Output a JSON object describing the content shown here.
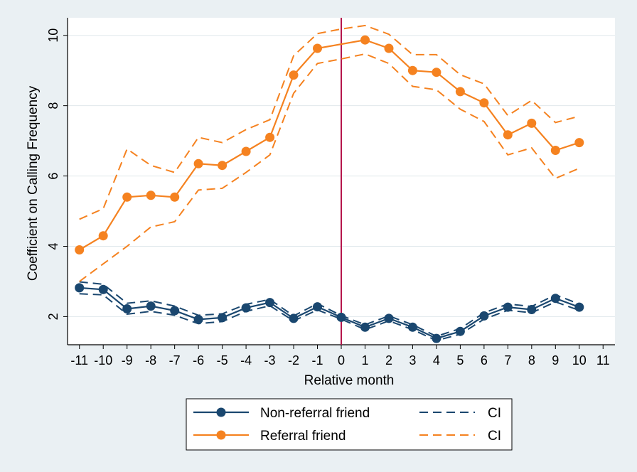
{
  "chart_data": {
    "type": "line",
    "title": "",
    "xlabel": "Relative month",
    "ylabel": "Coefficient on Calling  Frequency",
    "x_ticks": [
      -11,
      -10,
      -9,
      -8,
      -7,
      -6,
      -5,
      -4,
      -3,
      -2,
      -1,
      0,
      1,
      2,
      3,
      4,
      5,
      6,
      7,
      8,
      9,
      10,
      11
    ],
    "y_ticks": [
      2,
      4,
      6,
      8,
      10
    ],
    "xlim": [
      -11.5,
      11.5
    ],
    "ylim": [
      1.2,
      10.5
    ],
    "grid": "horizontal",
    "reference_line_x": 0,
    "legend_position": "bottom",
    "colors": {
      "background": "#eaf0f3",
      "plot_background": "#ffffff",
      "non_referral": "#1a476f",
      "referral": "#f58220",
      "reference_line": "#b5154b",
      "grid": "#e0e8ec"
    },
    "series": [
      {
        "key": "nonref",
        "name": "Non-referral friend",
        "x": [
          -11,
          -10,
          -9,
          -8,
          -7,
          -6,
          -5,
          -4,
          -3,
          -2,
          -1,
          0,
          1,
          2,
          3,
          4,
          5,
          6,
          7,
          8,
          9,
          10
        ],
        "y": [
          2.82,
          2.77,
          2.22,
          2.3,
          2.17,
          1.92,
          1.97,
          2.25,
          2.4,
          1.95,
          2.28,
          1.98,
          1.7,
          1.95,
          1.7,
          1.38,
          1.58,
          2.02,
          2.27,
          2.2,
          2.52,
          2.27
        ],
        "ci_lower": [
          2.65,
          2.62,
          2.07,
          2.15,
          2.04,
          1.8,
          1.86,
          2.15,
          2.31,
          1.88,
          2.19,
          1.93,
          1.63,
          1.88,
          1.63,
          1.32,
          1.5,
          1.93,
          2.18,
          2.11,
          2.42,
          2.18
        ],
        "ci_upper": [
          2.99,
          2.92,
          2.38,
          2.45,
          2.3,
          2.04,
          2.08,
          2.35,
          2.49,
          2.02,
          2.37,
          2.03,
          1.77,
          2.02,
          1.77,
          1.44,
          1.66,
          2.11,
          2.36,
          2.29,
          2.62,
          2.36
        ]
      },
      {
        "key": "ref",
        "name": "Referral friend",
        "x": [
          -11,
          -10,
          -9,
          -8,
          -7,
          -6,
          -5,
          -4,
          -3,
          -2,
          -1,
          0,
          1,
          2,
          3,
          4,
          5,
          6,
          7,
          8,
          9,
          10
        ],
        "y": [
          3.9,
          4.3,
          5.4,
          5.45,
          5.4,
          6.35,
          6.3,
          6.7,
          7.1,
          8.87,
          9.63,
          null,
          9.87,
          9.63,
          9.0,
          8.95,
          8.4,
          8.08,
          7.17,
          7.5,
          6.73,
          6.95
        ],
        "ci_lower": [
          3.0,
          3.5,
          4.0,
          4.55,
          4.7,
          5.6,
          5.65,
          6.1,
          6.6,
          8.35,
          9.2,
          9.33,
          9.47,
          9.2,
          8.55,
          8.45,
          7.9,
          7.55,
          6.6,
          6.8,
          5.93,
          6.22
        ],
        "ci_upper": [
          4.77,
          5.07,
          6.77,
          6.3,
          6.1,
          7.1,
          6.95,
          7.32,
          7.6,
          9.42,
          10.05,
          10.18,
          10.28,
          10.03,
          9.45,
          9.45,
          8.88,
          8.62,
          7.72,
          8.15,
          7.52,
          7.7
        ]
      }
    ],
    "legend": [
      {
        "label": "Non-referral friend",
        "series": "nonref",
        "style": "line-marker"
      },
      {
        "label": "CI",
        "series": "nonref",
        "style": "dashed"
      },
      {
        "label": "Referral friend",
        "series": "ref",
        "style": "line-marker"
      },
      {
        "label": "CI",
        "series": "ref",
        "style": "dashed"
      }
    ]
  }
}
